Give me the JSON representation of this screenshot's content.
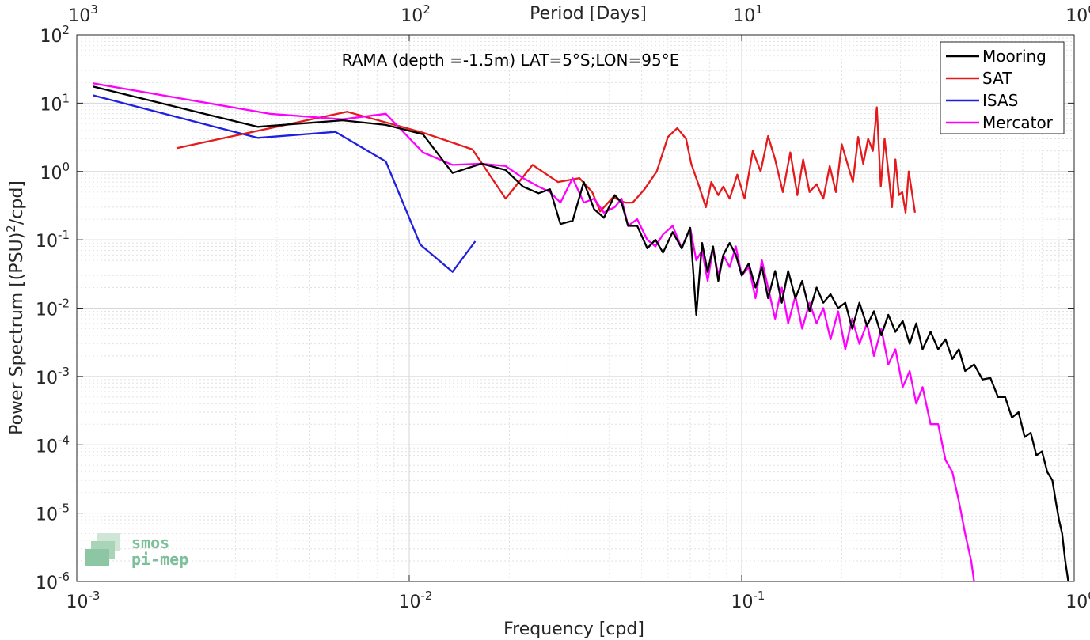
{
  "chart_data": {
    "type": "line",
    "title": "RAMA (depth =-1.5m) LAT=5°S;LON=95°E",
    "xlabel": "Frequency [cpd]",
    "ylabel_main": "Power Spectrum [(PSU)",
    "ylabel_sup": "2",
    "ylabel_tail": "/cpd]",
    "top_xlabel": "Period [Days]",
    "xscale": "log",
    "yscale": "log",
    "xlim": [
      0.001,
      1
    ],
    "ylim": [
      1e-06,
      100
    ],
    "grid": true,
    "legend_position": "top-right",
    "x_ticks": [
      {
        "base": "10",
        "exp": "-3",
        "value": 0.001
      },
      {
        "base": "10",
        "exp": "-2",
        "value": 0.01
      },
      {
        "base": "10",
        "exp": "-1",
        "value": 0.1
      },
      {
        "base": "10",
        "exp": "0",
        "value": 1
      }
    ],
    "top_ticks": [
      {
        "base": "10",
        "exp": "3",
        "value": 0.001
      },
      {
        "base": "10",
        "exp": "2",
        "value": 0.01
      },
      {
        "base": "10",
        "exp": "1",
        "value": 0.1
      },
      {
        "base": "10",
        "exp": "0",
        "value": 1
      }
    ],
    "y_ticks": [
      {
        "base": "10",
        "exp": "2",
        "value": 100
      },
      {
        "base": "10",
        "exp": "1",
        "value": 10
      },
      {
        "base": "10",
        "exp": "0",
        "value": 1
      },
      {
        "base": "10",
        "exp": "-1",
        "value": 0.1
      },
      {
        "base": "10",
        "exp": "-2",
        "value": 0.01
      },
      {
        "base": "10",
        "exp": "-3",
        "value": 0.001
      },
      {
        "base": "10",
        "exp": "-4",
        "value": 0.0001
      },
      {
        "base": "10",
        "exp": "-5",
        "value": 1e-05
      },
      {
        "base": "10",
        "exp": "-6",
        "value": 1e-06
      }
    ],
    "series": [
      {
        "name": "Mooring",
        "color": "#000000",
        "x": [
          0.00112,
          0.0035,
          0.0063,
          0.0085,
          0.011,
          0.0135,
          0.0165,
          0.0195,
          0.022,
          0.0245,
          0.0265,
          0.0285,
          0.031,
          0.0335,
          0.036,
          0.0385,
          0.0415,
          0.0435,
          0.0455,
          0.0485,
          0.052,
          0.055,
          0.058,
          0.062,
          0.066,
          0.07,
          0.073,
          0.076,
          0.079,
          0.082,
          0.085,
          0.088,
          0.092,
          0.096,
          0.1,
          0.105,
          0.11,
          0.115,
          0.12,
          0.126,
          0.132,
          0.138,
          0.145,
          0.152,
          0.16,
          0.168,
          0.176,
          0.185,
          0.195,
          0.205,
          0.215,
          0.226,
          0.238,
          0.25,
          0.263,
          0.276,
          0.29,
          0.305,
          0.32,
          0.335,
          0.35,
          0.37,
          0.39,
          0.41,
          0.43,
          0.45,
          0.47,
          0.5,
          0.53,
          0.56,
          0.59,
          0.62,
          0.65,
          0.68,
          0.71,
          0.74,
          0.77,
          0.8,
          0.83,
          0.86,
          0.88,
          0.9,
          0.92,
          0.94,
          0.96
        ],
        "y": [
          17.5,
          4.5,
          5.6,
          4.8,
          3.5,
          0.95,
          1.3,
          1.05,
          0.6,
          0.48,
          0.55,
          0.17,
          0.19,
          0.7,
          0.28,
          0.21,
          0.45,
          0.35,
          0.16,
          0.16,
          0.075,
          0.1,
          0.065,
          0.13,
          0.075,
          0.15,
          0.008,
          0.09,
          0.034,
          0.08,
          0.025,
          0.06,
          0.09,
          0.06,
          0.03,
          0.045,
          0.02,
          0.04,
          0.014,
          0.035,
          0.012,
          0.035,
          0.014,
          0.025,
          0.009,
          0.02,
          0.012,
          0.016,
          0.01,
          0.012,
          0.005,
          0.012,
          0.0055,
          0.009,
          0.004,
          0.008,
          0.0045,
          0.0065,
          0.003,
          0.006,
          0.0025,
          0.0045,
          0.0025,
          0.0035,
          0.0018,
          0.0025,
          0.0012,
          0.0015,
          0.0009,
          0.00095,
          0.0005,
          0.0005,
          0.00025,
          0.0003,
          0.00013,
          0.00015,
          7e-05,
          8e-05,
          4e-05,
          3e-05,
          1.5e-05,
          8e-06,
          5e-06,
          2e-06,
          1e-06
        ]
      },
      {
        "name": "SAT",
        "color": "#e41a1c",
        "x": [
          0.002,
          0.0065,
          0.011,
          0.0155,
          0.0195,
          0.0235,
          0.028,
          0.0325,
          0.0355,
          0.0375,
          0.041,
          0.0445,
          0.047,
          0.051,
          0.0555,
          0.06,
          0.064,
          0.068,
          0.0705,
          0.0745,
          0.078,
          0.081,
          0.085,
          0.088,
          0.092,
          0.097,
          0.102,
          0.108,
          0.114,
          0.12,
          0.126,
          0.133,
          0.14,
          0.147,
          0.153,
          0.16,
          0.168,
          0.176,
          0.184,
          0.192,
          0.2,
          0.208,
          0.216,
          0.224,
          0.232,
          0.24,
          0.248,
          0.255,
          0.262,
          0.269,
          0.276,
          0.283,
          0.29,
          0.297,
          0.304,
          0.311,
          0.318,
          0.325,
          0.332
        ],
        "y": [
          2.2,
          7.5,
          3.7,
          2.1,
          0.4,
          1.25,
          0.7,
          0.8,
          0.5,
          0.26,
          0.42,
          0.35,
          0.35,
          0.55,
          1.0,
          3.2,
          4.3,
          3.0,
          1.3,
          0.6,
          0.3,
          0.7,
          0.45,
          0.6,
          0.4,
          0.9,
          0.4,
          2.0,
          1.0,
          3.3,
          1.5,
          0.5,
          1.9,
          0.45,
          1.5,
          0.5,
          0.65,
          0.4,
          1.2,
          0.5,
          2.5,
          1.3,
          0.7,
          3.2,
          1.3,
          3.0,
          2.0,
          8.7,
          0.6,
          3.0,
          1.0,
          0.3,
          1.5,
          0.45,
          0.5,
          0.25,
          1.0,
          0.5,
          0.25
        ]
      },
      {
        "name": "ISAS",
        "color": "#1f1fe0",
        "x": [
          0.00112,
          0.0035,
          0.006,
          0.0085,
          0.0108,
          0.0135,
          0.0158
        ],
        "y": [
          13,
          3.1,
          3.8,
          1.4,
          0.085,
          0.034,
          0.095
        ]
      },
      {
        "name": "Mercator",
        "color": "#ff00ff",
        "x": [
          0.00112,
          0.0038,
          0.0063,
          0.0085,
          0.011,
          0.0135,
          0.0165,
          0.0195,
          0.022,
          0.0245,
          0.0265,
          0.0285,
          0.031,
          0.0335,
          0.036,
          0.0385,
          0.0415,
          0.0435,
          0.0455,
          0.0485,
          0.052,
          0.055,
          0.058,
          0.062,
          0.066,
          0.07,
          0.073,
          0.076,
          0.079,
          0.082,
          0.085,
          0.088,
          0.092,
          0.096,
          0.1,
          0.105,
          0.11,
          0.115,
          0.12,
          0.126,
          0.132,
          0.138,
          0.145,
          0.152,
          0.16,
          0.168,
          0.176,
          0.185,
          0.195,
          0.205,
          0.215,
          0.226,
          0.238,
          0.25,
          0.263,
          0.276,
          0.29,
          0.305,
          0.32,
          0.335,
          0.35,
          0.37,
          0.39,
          0.41,
          0.43,
          0.45,
          0.47,
          0.49,
          0.5
        ],
        "y": [
          19.5,
          7.0,
          5.8,
          7.0,
          1.9,
          1.25,
          1.3,
          1.2,
          0.8,
          0.6,
          0.5,
          0.35,
          0.8,
          0.35,
          0.4,
          0.25,
          0.3,
          0.4,
          0.16,
          0.2,
          0.1,
          0.08,
          0.12,
          0.16,
          0.075,
          0.15,
          0.05,
          0.07,
          0.025,
          0.075,
          0.03,
          0.06,
          0.04,
          0.08,
          0.03,
          0.04,
          0.014,
          0.05,
          0.02,
          0.007,
          0.02,
          0.006,
          0.015,
          0.005,
          0.012,
          0.006,
          0.01,
          0.0035,
          0.009,
          0.0025,
          0.007,
          0.003,
          0.006,
          0.002,
          0.005,
          0.0015,
          0.0025,
          0.0007,
          0.0012,
          0.0004,
          0.0007,
          0.0002,
          0.0002,
          6e-05,
          4e-05,
          1.5e-05,
          5e-06,
          2e-06,
          1e-06
        ]
      }
    ]
  },
  "logo": {
    "line1": "smos",
    "line2": "pi-mep"
  }
}
